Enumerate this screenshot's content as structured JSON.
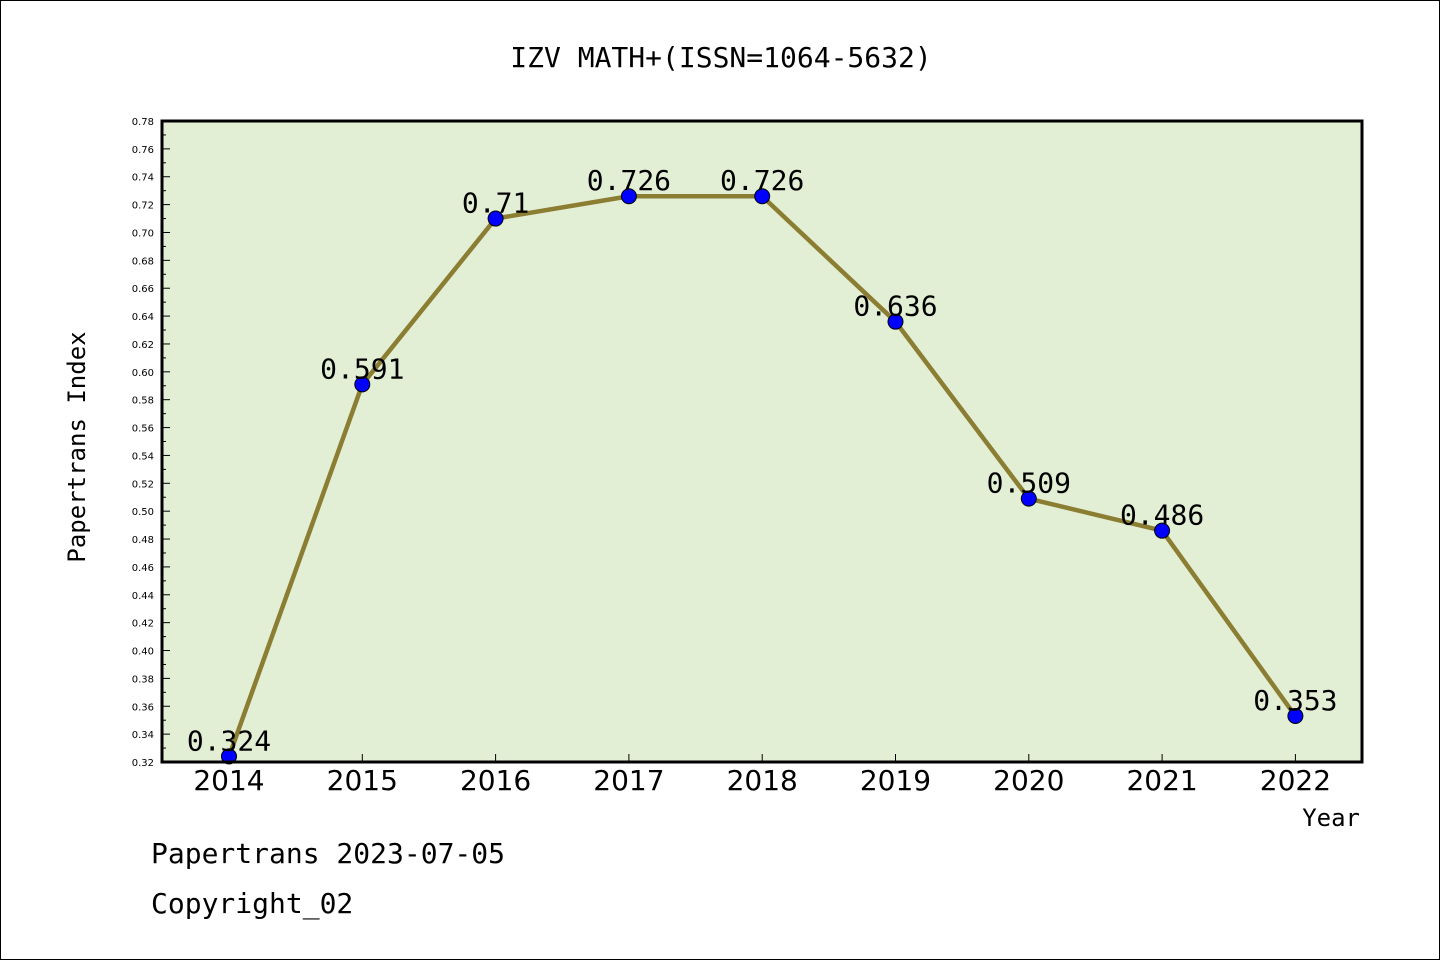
{
  "chart_data": {
    "type": "line",
    "title": "IZV MATH+(ISSN=1064-5632)",
    "xlabel": "Year",
    "ylabel": "Papertrans Index",
    "categories": [
      "2014",
      "2015",
      "2016",
      "2017",
      "2018",
      "2019",
      "2020",
      "2021",
      "2022"
    ],
    "series": [
      {
        "values": [
          0.324,
          0.591,
          0.71,
          0.726,
          0.726,
          0.636,
          0.509,
          0.486,
          0.353
        ]
      }
    ],
    "data_labels": [
      "0.324",
      "0.591",
      "0.71",
      "0.726",
      "0.726",
      "0.636",
      "0.509",
      "0.486",
      "0.353"
    ],
    "ylim": [
      0.32,
      0.78
    ],
    "ytick_step": 0.02,
    "grid": false,
    "colors": {
      "plot_background": "#e2efd5",
      "line": "#8b7d32",
      "marker": "#0000ff"
    }
  },
  "footer": {
    "date_text": "Papertrans 2023-07-05",
    "copyright_text": "Copyright_02"
  }
}
